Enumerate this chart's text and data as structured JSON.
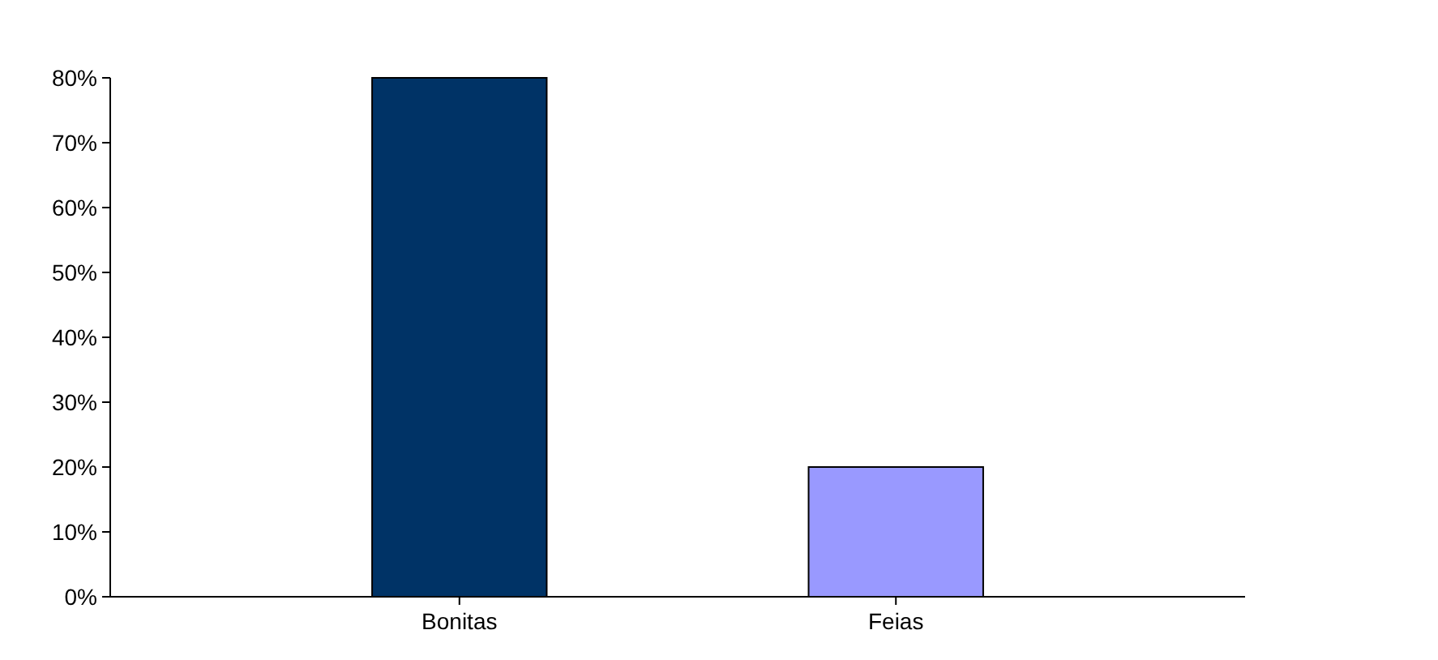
{
  "chart_data": {
    "type": "bar",
    "categories": [
      "Bonitas",
      "Feias"
    ],
    "values": [
      80,
      20
    ],
    "colors": [
      "#003366",
      "#9999ff"
    ],
    "ylim": [
      0,
      80
    ],
    "yticks": [
      {
        "value": 0,
        "label": "0%"
      },
      {
        "value": 10,
        "label": "10%"
      },
      {
        "value": 20,
        "label": "20%"
      },
      {
        "value": 30,
        "label": "30%"
      },
      {
        "value": 40,
        "label": "40%"
      },
      {
        "value": 50,
        "label": "50%"
      },
      {
        "value": 60,
        "label": "60%"
      },
      {
        "value": 70,
        "label": "70%"
      },
      {
        "value": 80,
        "label": "80%"
      }
    ],
    "grid": false
  }
}
